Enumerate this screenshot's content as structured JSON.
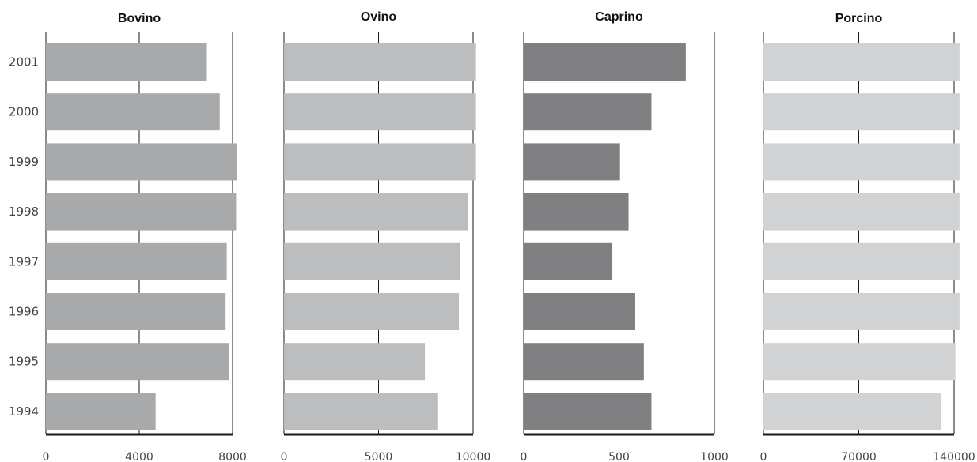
{
  "chart_data": [
    {
      "type": "bar",
      "orientation": "horizontal",
      "title": "Bovino",
      "color": "#a8a9ab",
      "categories": [
        "2001",
        "2000",
        "1999",
        "1998",
        "1997",
        "1996",
        "1995",
        "1994"
      ],
      "values": [
        6900,
        7450,
        8200,
        8150,
        7750,
        7700,
        7850,
        4700
      ],
      "xlim": [
        0,
        8000
      ],
      "xticks": [
        "0",
        "4000",
        "8000"
      ],
      "grid": true
    },
    {
      "type": "bar",
      "orientation": "horizontal",
      "title": "Ovino",
      "color": "#bcbdbf",
      "categories": [
        "2001",
        "2000",
        "1999",
        "1998",
        "1997",
        "1996",
        "1995",
        "1994"
      ],
      "values": [
        10150,
        10150,
        10150,
        9750,
        9300,
        9250,
        7450,
        8150
      ],
      "xlim": [
        0,
        10000
      ],
      "xticks": [
        "0",
        "5000",
        "10000"
      ],
      "grid": true
    },
    {
      "type": "bar",
      "orientation": "horizontal",
      "title": "Caprino",
      "color": "#808083",
      "categories": [
        "2001",
        "2000",
        "1999",
        "1998",
        "1997",
        "1996",
        "1995",
        "1994"
      ],
      "values": [
        850,
        670,
        505,
        550,
        465,
        585,
        630,
        670
      ],
      "xlim": [
        0,
        1000
      ],
      "xticks": [
        "0",
        "500",
        "1000"
      ],
      "grid": true
    },
    {
      "type": "bar",
      "orientation": "horizontal",
      "title": "Porcino",
      "color": "#d1d2d3",
      "categories": [
        "2001",
        "2000",
        "1999",
        "1998",
        "1997",
        "1996",
        "1995",
        "1994"
      ],
      "values": [
        144000,
        144000,
        144000,
        144000,
        144000,
        144000,
        141000,
        130500
      ],
      "xlim": [
        0,
        140000
      ],
      "xticks": [
        "0",
        "70000",
        "140000"
      ],
      "grid": true
    }
  ]
}
